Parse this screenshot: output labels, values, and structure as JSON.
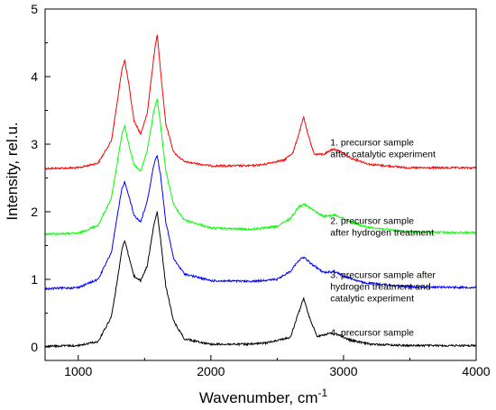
{
  "chart_data": {
    "type": "line",
    "xlabel": "Wavenumber, cm",
    "xlabel_superscript": "-1",
    "ylabel": "Intensity, rel.u.",
    "xlim": [
      750,
      4000
    ],
    "ylim": [
      -0.2,
      5
    ],
    "x_ticks": [
      "1000",
      "2000",
      "3000",
      "4000"
    ],
    "y_ticks": [
      "0",
      "1",
      "2",
      "3",
      "4",
      "5"
    ],
    "grid": false,
    "series": [
      {
        "color": "#ff0000",
        "points": [
          [
            750,
            2.64
          ],
          [
            1000,
            2.65
          ],
          [
            1150,
            2.72
          ],
          [
            1250,
            3.05
          ],
          [
            1300,
            3.7
          ],
          [
            1330,
            4.12
          ],
          [
            1350,
            4.24
          ],
          [
            1380,
            3.9
          ],
          [
            1420,
            3.35
          ],
          [
            1470,
            3.15
          ],
          [
            1520,
            3.45
          ],
          [
            1570,
            4.3
          ],
          [
            1595,
            4.63
          ],
          [
            1620,
            4.1
          ],
          [
            1660,
            3.3
          ],
          [
            1720,
            2.88
          ],
          [
            1800,
            2.74
          ],
          [
            2000,
            2.68
          ],
          [
            2300,
            2.68
          ],
          [
            2400,
            2.7
          ],
          [
            2480,
            2.74
          ],
          [
            2550,
            2.76
          ],
          [
            2620,
            2.88
          ],
          [
            2670,
            3.2
          ],
          [
            2700,
            3.4
          ],
          [
            2730,
            3.15
          ],
          [
            2780,
            2.85
          ],
          [
            2850,
            2.85
          ],
          [
            2920,
            2.93
          ],
          [
            2970,
            2.9
          ],
          [
            3050,
            2.8
          ],
          [
            3200,
            2.7
          ],
          [
            3500,
            2.65
          ],
          [
            4000,
            2.65
          ]
        ],
        "annotation": [
          "1. precursor sample",
          "after catalytic experiment"
        ]
      },
      {
        "color": "#00ff00",
        "points": [
          [
            750,
            1.67
          ],
          [
            1000,
            1.68
          ],
          [
            1150,
            1.8
          ],
          [
            1250,
            2.2
          ],
          [
            1300,
            2.8
          ],
          [
            1330,
            3.15
          ],
          [
            1350,
            3.27
          ],
          [
            1380,
            3.0
          ],
          [
            1420,
            2.7
          ],
          [
            1470,
            2.6
          ],
          [
            1520,
            2.9
          ],
          [
            1570,
            3.5
          ],
          [
            1595,
            3.67
          ],
          [
            1620,
            3.3
          ],
          [
            1660,
            2.6
          ],
          [
            1720,
            2.1
          ],
          [
            1800,
            1.88
          ],
          [
            2000,
            1.76
          ],
          [
            2300,
            1.74
          ],
          [
            2500,
            1.78
          ],
          [
            2600,
            1.9
          ],
          [
            2660,
            2.07
          ],
          [
            2700,
            2.12
          ],
          [
            2750,
            2.05
          ],
          [
            2850,
            1.93
          ],
          [
            2940,
            1.95
          ],
          [
            3000,
            1.9
          ],
          [
            3150,
            1.78
          ],
          [
            3500,
            1.7
          ],
          [
            4000,
            1.69
          ]
        ],
        "annotation": [
          "2. precursor sample",
          "after hydrogen treatment"
        ]
      },
      {
        "color": "#0000ff",
        "points": [
          [
            750,
            0.86
          ],
          [
            1000,
            0.88
          ],
          [
            1150,
            1.0
          ],
          [
            1250,
            1.4
          ],
          [
            1300,
            2.0
          ],
          [
            1330,
            2.35
          ],
          [
            1350,
            2.44
          ],
          [
            1380,
            2.25
          ],
          [
            1420,
            1.95
          ],
          [
            1470,
            1.85
          ],
          [
            1520,
            2.15
          ],
          [
            1570,
            2.7
          ],
          [
            1595,
            2.84
          ],
          [
            1620,
            2.55
          ],
          [
            1660,
            1.85
          ],
          [
            1720,
            1.3
          ],
          [
            1800,
            1.08
          ],
          [
            2000,
            0.98
          ],
          [
            2300,
            0.97
          ],
          [
            2500,
            1.0
          ],
          [
            2600,
            1.12
          ],
          [
            2660,
            1.28
          ],
          [
            2700,
            1.33
          ],
          [
            2750,
            1.24
          ],
          [
            2850,
            1.1
          ],
          [
            2930,
            1.12
          ],
          [
            3000,
            1.05
          ],
          [
            3150,
            0.95
          ],
          [
            3500,
            0.89
          ],
          [
            4000,
            0.88
          ]
        ],
        "annotation": [
          "3. precursor sample after",
          "hydrogen treatment and",
          "catalytic experiment"
        ]
      },
      {
        "color": "#000000",
        "points": [
          [
            750,
            0.01
          ],
          [
            1000,
            0.02
          ],
          [
            1150,
            0.08
          ],
          [
            1250,
            0.45
          ],
          [
            1300,
            1.05
          ],
          [
            1330,
            1.45
          ],
          [
            1350,
            1.58
          ],
          [
            1380,
            1.35
          ],
          [
            1420,
            1.05
          ],
          [
            1470,
            0.98
          ],
          [
            1520,
            1.2
          ],
          [
            1570,
            1.8
          ],
          [
            1595,
            2.0
          ],
          [
            1620,
            1.6
          ],
          [
            1660,
            0.9
          ],
          [
            1720,
            0.38
          ],
          [
            1800,
            0.12
          ],
          [
            2000,
            0.04
          ],
          [
            2300,
            0.04
          ],
          [
            2420,
            0.06
          ],
          [
            2500,
            0.1
          ],
          [
            2600,
            0.14
          ],
          [
            2660,
            0.5
          ],
          [
            2700,
            0.72
          ],
          [
            2740,
            0.45
          ],
          [
            2800,
            0.16
          ],
          [
            2900,
            0.2
          ],
          [
            2950,
            0.19
          ],
          [
            3050,
            0.1
          ],
          [
            3200,
            0.04
          ],
          [
            3500,
            0.02
          ],
          [
            4000,
            0.02
          ]
        ],
        "annotation": [
          "4. precursor sample"
        ]
      }
    ]
  }
}
